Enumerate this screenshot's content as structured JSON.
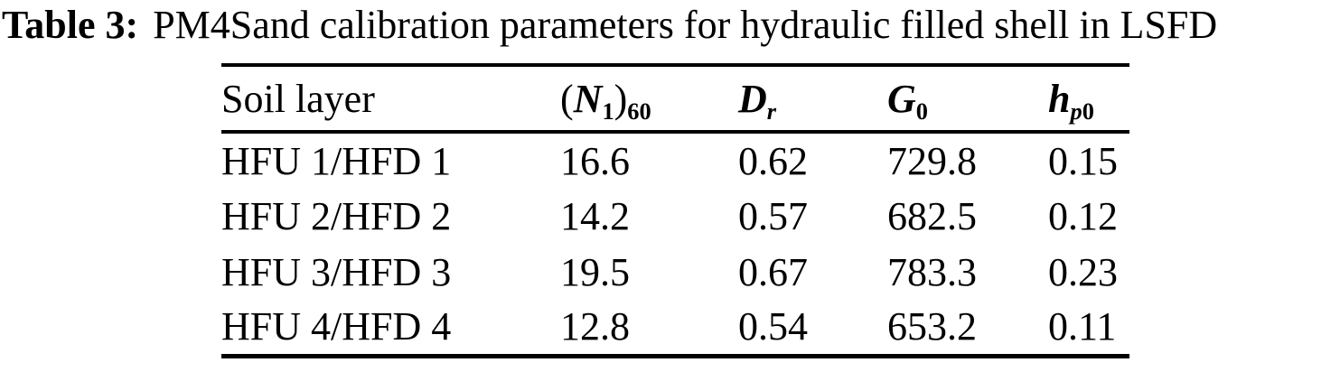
{
  "title": {
    "label": "Table 3:",
    "text": "PM4Sand calibration parameters for hydraulic filled shell in LSFD"
  },
  "table": {
    "columns": {
      "soil_layer": "Soil layer",
      "n160": {
        "open": "(",
        "base": "N",
        "sub_inner": "1",
        "close": ")",
        "sub_outer": "60"
      },
      "dr": {
        "base": "D",
        "sub_italic": "r"
      },
      "g0": {
        "base": "G",
        "sub_upright": "0"
      },
      "hp0": {
        "base": "h",
        "sub_italic": "p",
        "sub_upright": "0"
      }
    },
    "rows": [
      {
        "layer": "HFU 1/HFD 1",
        "n160": "16.6",
        "dr": "0.62",
        "g0": "729.8",
        "hp0": "0.15"
      },
      {
        "layer": "HFU 2/HFD 2",
        "n160": "14.2",
        "dr": "0.57",
        "g0": "682.5",
        "hp0": "0.12"
      },
      {
        "layer": "HFU 3/HFD 3",
        "n160": "19.5",
        "dr": "0.67",
        "g0": "783.3",
        "hp0": "0.23"
      },
      {
        "layer": "HFU 4/HFD 4",
        "n160": "12.8",
        "dr": "0.54",
        "g0": "653.2",
        "hp0": "0.11"
      }
    ]
  },
  "colors": {
    "text": "#000000",
    "background": "#ffffff",
    "rule": "#000000"
  }
}
